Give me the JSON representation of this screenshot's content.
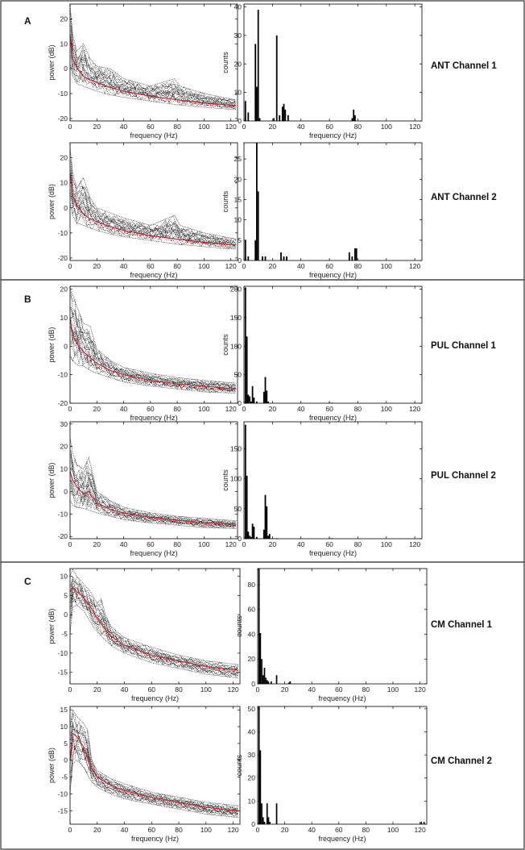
{
  "figure": {
    "panels": [
      {
        "letter": "A",
        "channels": [
          "ANT Channel 1",
          "ANT Channel 2"
        ]
      },
      {
        "letter": "B",
        "channels": [
          "PUL Channel 1",
          "PUL Channel 2"
        ]
      },
      {
        "letter": "C",
        "channels": [
          "CM Channel 1",
          "CM Channel 2"
        ]
      }
    ]
  },
  "chart_data": [
    {
      "id": "ant1-spectrum",
      "type": "line",
      "title": "",
      "xlabel": "frequency (Hz)",
      "ylabel": "power (dB)",
      "xlim": [
        0,
        125
      ],
      "ylim": [
        -21,
        26
      ],
      "xticks": [
        0,
        20,
        40,
        60,
        80,
        100,
        120
      ],
      "yticks": [
        -20,
        -10,
        0,
        10,
        20
      ],
      "series": [
        {
          "name": "mean spectrum (red)",
          "x": [
            0,
            2,
            5,
            10,
            15,
            20,
            30,
            40,
            60,
            80,
            100,
            124
          ],
          "values": [
            14,
            4,
            0.5,
            -3,
            -4.5,
            -5.5,
            -7.5,
            -9,
            -11,
            -12.5,
            -13.8,
            -14.8
          ]
        },
        {
          "name": "individual spectra upper envelope (dotted)",
          "x": [
            0,
            2,
            5,
            10,
            15,
            20,
            30,
            40,
            60,
            78,
            82,
            100,
            124
          ],
          "values": [
            25,
            14,
            7,
            10,
            4,
            1,
            0,
            -4,
            -7,
            -4,
            -7,
            -10,
            -12.5
          ]
        },
        {
          "name": "individual spectra lower envelope (dotted)",
          "x": [
            0,
            2,
            5,
            10,
            15,
            20,
            30,
            40,
            60,
            80,
            100,
            124
          ],
          "values": [
            2,
            -3,
            -6,
            -7,
            -8,
            -9,
            -10.5,
            -11.5,
            -13,
            -14.5,
            -15.5,
            -16.5
          ]
        }
      ]
    },
    {
      "id": "ant1-hist",
      "type": "bar",
      "title": "",
      "xlabel": "frequency (Hz)",
      "ylabel": "counts",
      "xlim": [
        0,
        125
      ],
      "ylim": [
        0,
        41
      ],
      "xticks": [
        0,
        20,
        40,
        60,
        80,
        100,
        120
      ],
      "yticks": [
        0,
        10,
        20,
        30,
        40
      ],
      "x": [
        1,
        3,
        8,
        9,
        10,
        11,
        21,
        23,
        25,
        27,
        28,
        29,
        31,
        76,
        77,
        78
      ],
      "values": [
        7,
        3,
        27,
        12,
        39,
        1,
        1,
        30,
        2,
        5,
        6,
        4,
        2,
        1,
        4,
        2
      ]
    },
    {
      "id": "ant2-spectrum",
      "type": "line",
      "title": "",
      "xlabel": "frequency (Hz)",
      "ylabel": "power (dB)",
      "xlim": [
        0,
        125
      ],
      "ylim": [
        -21,
        26
      ],
      "xticks": [
        0,
        20,
        40,
        60,
        80,
        100,
        120
      ],
      "yticks": [
        -20,
        -10,
        0,
        10,
        20
      ],
      "series": [
        {
          "name": "mean spectrum (red)",
          "x": [
            0,
            2,
            5,
            10,
            15,
            20,
            30,
            40,
            60,
            80,
            100,
            124
          ],
          "values": [
            14,
            5,
            1,
            -2.5,
            -4.5,
            -5.5,
            -7.5,
            -9,
            -11,
            -12.5,
            -13.8,
            -14.8
          ]
        },
        {
          "name": "individual spectra upper envelope (dotted)",
          "x": [
            0,
            2,
            5,
            10,
            15,
            20,
            30,
            40,
            60,
            78,
            82,
            100,
            124
          ],
          "values": [
            24,
            14,
            8,
            12,
            4,
            0,
            -2,
            -4,
            -7,
            -3,
            -7,
            -10,
            -12.5
          ]
        },
        {
          "name": "individual spectra lower envelope (dotted)",
          "x": [
            0,
            2,
            5,
            10,
            15,
            20,
            30,
            40,
            60,
            80,
            100,
            124
          ],
          "values": [
            2,
            -3,
            -6,
            -7,
            -8,
            -9,
            -10.5,
            -11.5,
            -13,
            -14.5,
            -15.5,
            -16.5
          ]
        }
      ]
    },
    {
      "id": "ant2-hist",
      "type": "bar",
      "title": "",
      "xlabel": "frequency (Hz)",
      "ylabel": "counts",
      "xlim": [
        0,
        125
      ],
      "ylim": [
        0,
        29
      ],
      "xticks": [
        0,
        20,
        40,
        60,
        80,
        100,
        120
      ],
      "yticks": [
        0,
        5,
        10,
        15,
        20,
        25
      ],
      "x": [
        1,
        3,
        8,
        9,
        10,
        13,
        15,
        26,
        28,
        30,
        74,
        76,
        78,
        79
      ],
      "values": [
        5,
        1,
        5,
        29,
        17,
        1,
        1,
        2,
        1,
        1,
        2,
        1,
        3,
        3
      ]
    },
    {
      "id": "pul1-spectrum",
      "type": "line",
      "title": "",
      "xlabel": "frequency (Hz)",
      "ylabel": "power (dB)",
      "xlim": [
        0,
        125
      ],
      "ylim": [
        -20,
        21
      ],
      "xticks": [
        0,
        20,
        40,
        60,
        80,
        100,
        120
      ],
      "yticks": [
        -20,
        -10,
        0,
        10,
        20
      ],
      "series": [
        {
          "name": "mean spectrum (red)",
          "x": [
            0,
            2,
            5,
            10,
            15,
            20,
            30,
            40,
            60,
            80,
            100,
            124
          ],
          "values": [
            10,
            4,
            1,
            -2,
            -4,
            -6,
            -8.5,
            -10,
            -12,
            -13.2,
            -14,
            -15
          ]
        },
        {
          "name": "individual spectra upper envelope (dotted)",
          "x": [
            0,
            2,
            5,
            10,
            15,
            18,
            20,
            30,
            40,
            60,
            80,
            100,
            124
          ],
          "values": [
            20,
            18,
            14,
            8,
            7,
            2,
            -1,
            -5,
            -7.5,
            -9.5,
            -11,
            -12,
            -13
          ]
        },
        {
          "name": "individual spectra lower envelope (dotted)",
          "x": [
            0,
            2,
            5,
            10,
            15,
            20,
            30,
            40,
            60,
            80,
            100,
            124
          ],
          "values": [
            -3,
            -5,
            -6.5,
            -7,
            -8.5,
            -9.5,
            -11,
            -12.5,
            -14,
            -15,
            -16,
            -16.5
          ]
        }
      ]
    },
    {
      "id": "pul1-hist",
      "type": "bar",
      "title": "",
      "xlabel": "frequency (Hz)",
      "ylabel": "counts",
      "xlim": [
        0,
        125
      ],
      "ylim": [
        0,
        205
      ],
      "xticks": [
        0,
        20,
        40,
        60,
        80,
        100,
        120
      ],
      "yticks": [
        0,
        50,
        100,
        150,
        200
      ],
      "x": [
        1,
        2,
        3,
        4,
        5,
        6,
        7,
        9,
        14,
        15,
        16,
        17,
        60,
        62
      ],
      "values": [
        203,
        117,
        15,
        12,
        3,
        30,
        10,
        3,
        20,
        46,
        22,
        3,
        1,
        1
      ]
    },
    {
      "id": "pul2-spectrum",
      "type": "line",
      "title": "",
      "xlabel": "frequency (Hz)",
      "ylabel": "power (dB)",
      "xlim": [
        0,
        125
      ],
      "ylim": [
        -21,
        31
      ],
      "xticks": [
        0,
        20,
        40,
        60,
        80,
        100,
        120
      ],
      "yticks": [
        -20,
        -10,
        0,
        10,
        20,
        30
      ],
      "series": [
        {
          "name": "mean spectrum (red)",
          "x": [
            0,
            2,
            5,
            10,
            14,
            16,
            20,
            30,
            40,
            60,
            80,
            100,
            124
          ],
          "values": [
            9,
            5,
            2,
            -1,
            0,
            -2,
            -5,
            -8,
            -9.5,
            -11.5,
            -12.8,
            -13.8,
            -14.5
          ]
        },
        {
          "name": "individual spectra upper envelope (dotted)",
          "x": [
            0,
            2,
            5,
            10,
            14,
            16,
            20,
            30,
            40,
            60,
            80,
            100,
            124
          ],
          "values": [
            24,
            17,
            12,
            10,
            15,
            10,
            0,
            -4,
            -7,
            -9.5,
            -11,
            -12,
            -13
          ]
        },
        {
          "name": "individual spectra lower envelope (dotted)",
          "x": [
            0,
            2,
            5,
            10,
            15,
            20,
            30,
            40,
            60,
            80,
            100,
            124
          ],
          "values": [
            -4,
            -6,
            -7,
            -7.5,
            -8.5,
            -9.5,
            -11,
            -12.5,
            -14,
            -15,
            -16,
            -16.5
          ]
        }
      ]
    },
    {
      "id": "pul2-hist",
      "type": "bar",
      "title": "",
      "xlabel": "frequency (Hz)",
      "ylabel": "counts",
      "xlim": [
        0,
        125
      ],
      "ylim": [
        0,
        195
      ],
      "xticks": [
        0,
        20,
        40,
        60,
        80,
        100,
        120
      ],
      "yticks": [
        0,
        50,
        100,
        150
      ],
      "x": [
        1,
        2,
        3,
        4,
        5,
        6,
        7,
        9,
        14,
        15,
        16,
        17,
        18,
        20,
        23,
        60,
        62
      ],
      "values": [
        190,
        105,
        12,
        5,
        3,
        25,
        20,
        3,
        15,
        73,
        54,
        5,
        8,
        1,
        1,
        1,
        1
      ]
    },
    {
      "id": "cm1-spectrum",
      "type": "line",
      "title": "",
      "xlabel": "frequency (Hz)",
      "ylabel": "power (dB)",
      "xlim": [
        0,
        125
      ],
      "ylim": [
        -18,
        12
      ],
      "xticks": [
        0,
        20,
        40,
        60,
        80,
        100,
        120
      ],
      "yticks": [
        -15,
        -10,
        -5,
        0,
        5,
        10
      ],
      "series": [
        {
          "name": "mean spectrum (red)",
          "x": [
            0,
            2,
            5,
            10,
            15,
            20,
            25,
            30,
            40,
            60,
            80,
            100,
            124
          ],
          "values": [
            6,
            7,
            6,
            4.5,
            2,
            -1,
            -3.5,
            -5.5,
            -8,
            -10.5,
            -12,
            -13.5,
            -14.5
          ]
        },
        {
          "name": "individual spectra upper envelope (dotted)",
          "x": [
            0,
            2,
            5,
            10,
            15,
            20,
            23,
            26,
            30,
            40,
            60,
            80,
            100,
            124
          ],
          "values": [
            10,
            12,
            10,
            8,
            6,
            3,
            4,
            0,
            -3,
            -6,
            -8.5,
            -10.5,
            -12,
            -13
          ]
        },
        {
          "name": "individual spectra lower envelope (dotted)",
          "x": [
            0,
            2,
            5,
            10,
            15,
            20,
            30,
            40,
            60,
            80,
            100,
            124
          ],
          "values": [
            -5,
            2,
            2.5,
            1,
            -2,
            -4.5,
            -8,
            -10,
            -12.5,
            -14,
            -15.5,
            -16.5
          ]
        }
      ]
    },
    {
      "id": "cm1-hist",
      "type": "bar",
      "title": "",
      "xlabel": "frequency (Hz)",
      "ylabel": "counts",
      "xlim": [
        0,
        125
      ],
      "ylim": [
        0,
        93
      ],
      "xticks": [
        0,
        20,
        40,
        60,
        80,
        100,
        120
      ],
      "yticks": [
        0,
        20,
        40,
        60,
        80
      ],
      "x": [
        1,
        2,
        3,
        4,
        5,
        6,
        7,
        8,
        10,
        14,
        23,
        24
      ],
      "values": [
        93,
        41,
        20,
        7,
        13,
        5,
        3,
        2,
        2,
        7,
        1,
        2
      ]
    },
    {
      "id": "cm2-spectrum",
      "type": "line",
      "title": "",
      "xlabel": "frequency (Hz)",
      "ylabel": "power (dB)",
      "xlim": [
        0,
        125
      ],
      "ylim": [
        -19,
        16
      ],
      "xticks": [
        0,
        20,
        40,
        60,
        80,
        100,
        120
      ],
      "yticks": [
        -15,
        -10,
        -5,
        0,
        5,
        10,
        15
      ],
      "series": [
        {
          "name": "mean spectrum (red)",
          "x": [
            0,
            2,
            5,
            10,
            15,
            20,
            30,
            40,
            60,
            80,
            100,
            124
          ],
          "values": [
            0,
            8,
            7,
            4,
            -2,
            -5,
            -7.5,
            -9,
            -11,
            -12.5,
            -14,
            -15
          ]
        },
        {
          "name": "individual spectra upper envelope (dotted)",
          "x": [
            0,
            2,
            5,
            10,
            13,
            16,
            20,
            30,
            40,
            60,
            80,
            100,
            124
          ],
          "values": [
            10,
            15,
            13,
            11,
            9,
            0,
            -3,
            -5.5,
            -7,
            -9.5,
            -11,
            -12.5,
            -13.5
          ]
        },
        {
          "name": "individual spectra lower envelope (dotted)",
          "x": [
            0,
            2,
            5,
            10,
            15,
            20,
            30,
            40,
            60,
            80,
            100,
            124
          ],
          "values": [
            -10,
            -1,
            0,
            -2,
            -6,
            -8,
            -10,
            -11.5,
            -13,
            -14.5,
            -16,
            -17
          ]
        }
      ]
    },
    {
      "id": "cm2-hist",
      "type": "bar",
      "title": "",
      "xlabel": "frequency (Hz)",
      "ylabel": "counts",
      "xlim": [
        0,
        125
      ],
      "ylim": [
        0,
        51
      ],
      "xticks": [
        0,
        20,
        40,
        60,
        80,
        100,
        120
      ],
      "yticks": [
        0,
        10,
        20,
        30,
        40,
        50
      ],
      "x": [
        1,
        2,
        3,
        4,
        5,
        7,
        8,
        9,
        14,
        121,
        123
      ],
      "values": [
        51,
        32,
        9,
        3,
        1,
        9,
        3,
        1,
        9,
        1,
        1
      ]
    }
  ]
}
